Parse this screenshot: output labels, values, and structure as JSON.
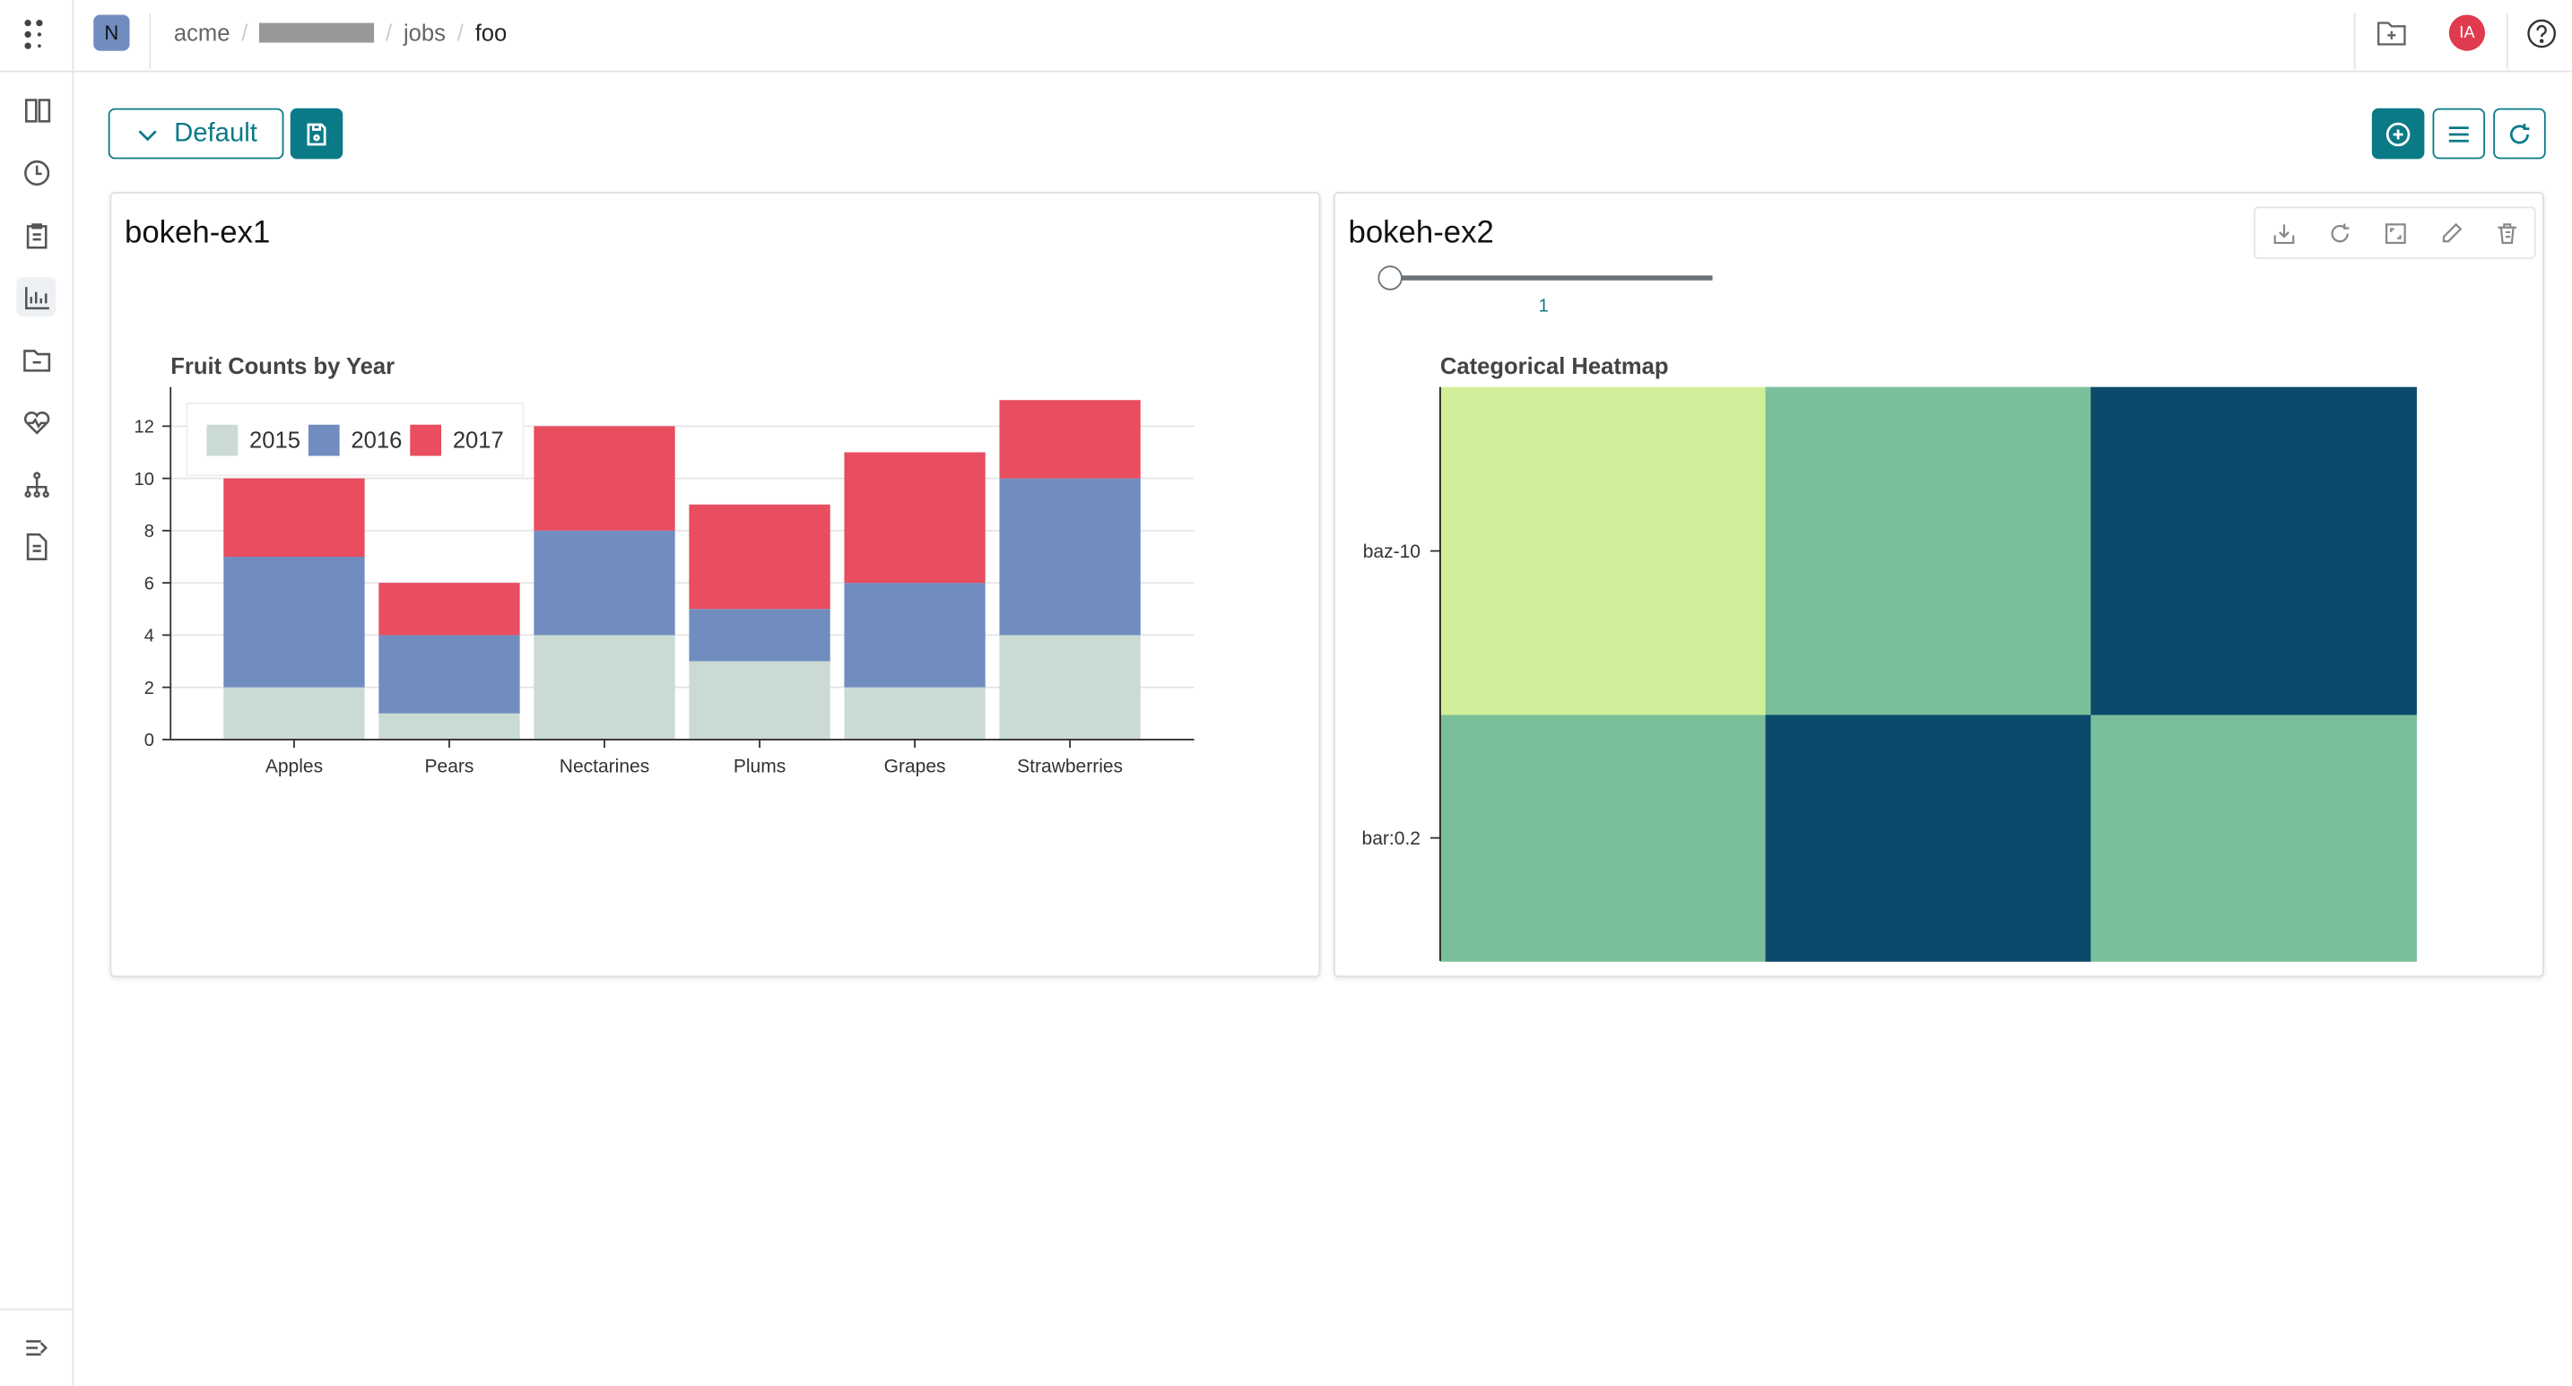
{
  "topbar": {
    "org_initial": "N",
    "breadcrumbs": [
      "acme",
      "jobs",
      "foo"
    ],
    "user_initials": "IA"
  },
  "toolbar": {
    "view_label": "Default"
  },
  "panels": [
    {
      "title": "bokeh-ex1"
    },
    {
      "title": "bokeh-ex2",
      "slider": {
        "value": 1,
        "label": "1",
        "min": 1,
        "max": 3
      }
    }
  ],
  "colors": {
    "accent": "#0b7a87",
    "avatar": "#e03a4f"
  },
  "chart_data": [
    {
      "type": "bar",
      "stacked": true,
      "title": "Fruit Counts by Year",
      "categories": [
        "Apples",
        "Pears",
        "Nectarines",
        "Plums",
        "Grapes",
        "Strawberries"
      ],
      "series": [
        {
          "name": "2015",
          "color": "#c9dbd4",
          "values": [
            2,
            1,
            4,
            3,
            2,
            4
          ]
        },
        {
          "name": "2016",
          "color": "#718dbf",
          "values": [
            5,
            3,
            4,
            2,
            4,
            6
          ]
        },
        {
          "name": "2017",
          "color": "#e84d60",
          "values": [
            3,
            2,
            4,
            4,
            5,
            3
          ]
        }
      ],
      "yticks": [
        "0",
        "2",
        "4",
        "6",
        "8",
        "10",
        "12"
      ],
      "ylim": [
        0,
        13.5
      ],
      "legend": "top-left",
      "grid": true
    },
    {
      "type": "heatmap",
      "title": "Categorical Heatmap",
      "y_categories": [
        "baz-10",
        "bar:0.2"
      ],
      "cells": [
        [
          "#d1ef9a",
          "#7bbf9a",
          "#0b4a6a"
        ],
        [
          "#7bbf9a",
          "#0b4a6a",
          "#7bbf9a"
        ]
      ]
    }
  ]
}
